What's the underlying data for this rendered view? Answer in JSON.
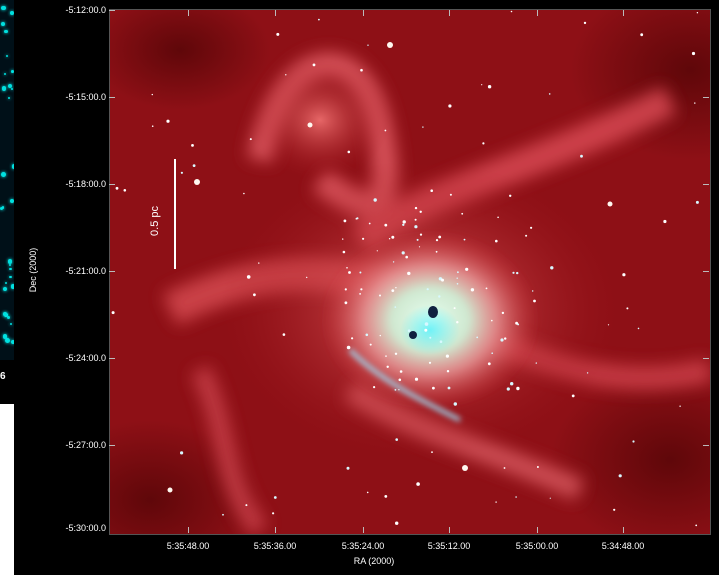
{
  "left_panel": {
    "label": "6"
  },
  "image": {
    "y_axis": {
      "label": "Dec (2000)",
      "ticks": [
        "-5:12:00.0",
        "-5:15:00.0",
        "-5:18:00.0",
        "-5:21:00.0",
        "-5:24:00.0",
        "-5:27:00.0",
        "-5:30:00.0"
      ]
    },
    "x_axis": {
      "label": "RA (2000)",
      "ticks": [
        "5:35:48.00",
        "5:35:36.00",
        "5:35:24.00",
        "5:35:12.00",
        "5:35:00.00",
        "5:34:48.00"
      ]
    },
    "scale_bar": {
      "label": "0.5 pc"
    },
    "colors": {
      "nebula": "#c8202a",
      "core": "#e8f4e0",
      "cyan": "#40e0e0",
      "background": "#000000"
    }
  }
}
